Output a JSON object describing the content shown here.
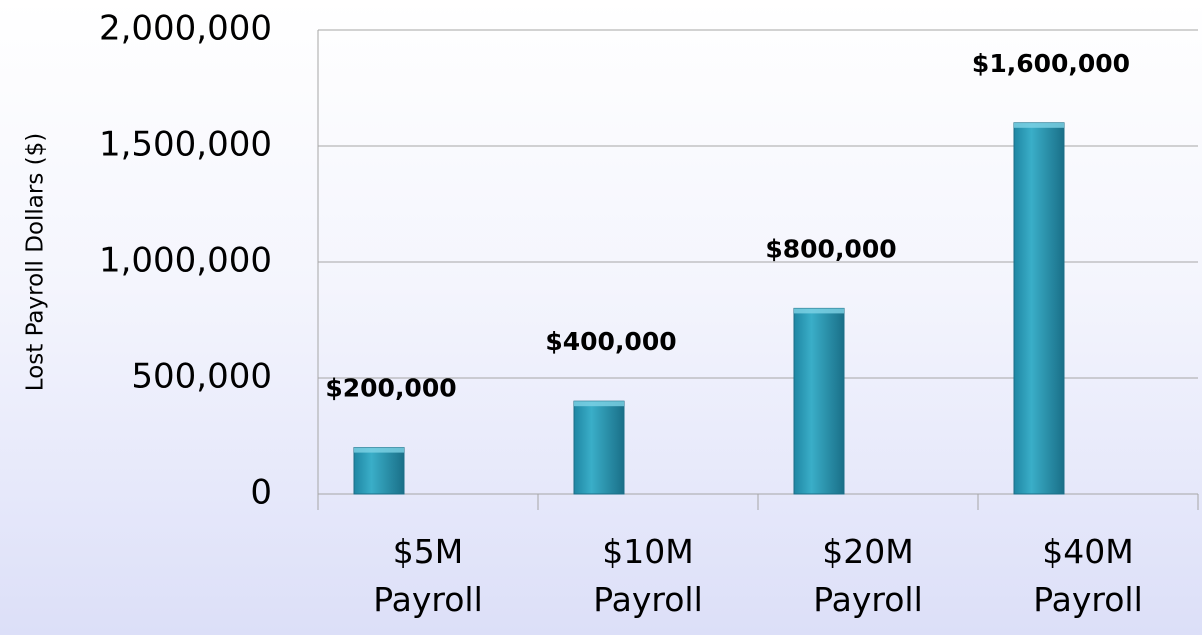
{
  "chart_data": {
    "type": "bar",
    "y_axis_label": "Lost Payroll Dollars ($)",
    "categories": [
      "$5M Payroll",
      "$10M Payroll",
      "$20M Payroll",
      "$40M Payroll"
    ],
    "values": [
      200000,
      400000,
      800000,
      1600000
    ],
    "value_labels": [
      "$200,000",
      "$400,000",
      "$800,000",
      "$1,600,000"
    ],
    "color": "#2596b2",
    "ylim": [
      0,
      2000000
    ],
    "yticks": [
      {
        "value": 0,
        "label": "0"
      },
      {
        "value": 500000,
        "label": "500,000"
      },
      {
        "value": 1000000,
        "label": "1,000,000"
      },
      {
        "value": 1500000,
        "label": "1,500,000"
      },
      {
        "value": 2000000,
        "label": "2,000,000"
      }
    ],
    "grid": true
  }
}
